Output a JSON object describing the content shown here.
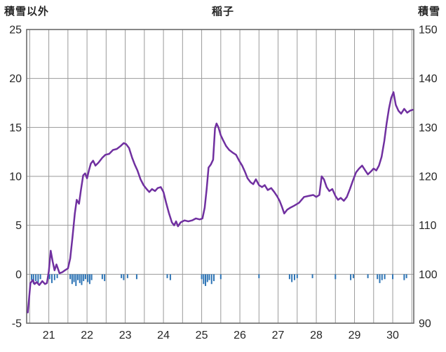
{
  "header": {
    "left_axis_title": "積雪以外",
    "chart_title": "稲子",
    "right_axis_title": "積雪"
  },
  "chart_data": {
    "type": "line",
    "title": "稲子",
    "left_axis": {
      "label": "積雪以外",
      "ylim": [
        -5,
        25
      ],
      "ticks": [
        25,
        20,
        15,
        10,
        5,
        0,
        -5
      ]
    },
    "right_axis": {
      "label": "積雪",
      "ylim": [
        90,
        150
      ],
      "ticks": [
        150,
        140,
        130,
        120,
        110,
        100,
        90
      ]
    },
    "x_axis": {
      "xlim": [
        20.42,
        30.55
      ],
      "ticks": [
        21,
        22,
        23,
        24,
        25,
        26,
        27,
        28,
        29,
        30
      ],
      "grid_start": 20.5,
      "grid_end": 30.5,
      "grid_step": 0.5
    },
    "grid": true,
    "legend": "none",
    "colors": {
      "line": "#7030a0",
      "bars": "#2e75b6",
      "grid": "#9a9a9a",
      "border": "#6b6b6b",
      "text": "#262626",
      "background": "#ffffff"
    },
    "series": [
      {
        "name": "snow-depth-line",
        "type": "line",
        "color": "#7030a0",
        "points": [
          [
            20.45,
            -3.9
          ],
          [
            20.48,
            -2.6
          ],
          [
            20.52,
            -0.9
          ],
          [
            20.58,
            -0.6
          ],
          [
            20.63,
            -1.0
          ],
          [
            20.68,
            -0.8
          ],
          [
            20.75,
            -1.1
          ],
          [
            20.83,
            -0.7
          ],
          [
            20.9,
            -1.0
          ],
          [
            20.95,
            -0.9
          ],
          [
            21.0,
            0.3
          ],
          [
            21.05,
            2.4
          ],
          [
            21.1,
            1.3
          ],
          [
            21.15,
            0.4
          ],
          [
            21.2,
            1.0
          ],
          [
            21.28,
            0.1
          ],
          [
            21.35,
            0.2
          ],
          [
            21.42,
            0.4
          ],
          [
            21.5,
            0.6
          ],
          [
            21.56,
            1.6
          ],
          [
            21.62,
            3.8
          ],
          [
            21.68,
            6.2
          ],
          [
            21.73,
            7.6
          ],
          [
            21.79,
            7.2
          ],
          [
            21.84,
            8.6
          ],
          [
            21.9,
            10.1
          ],
          [
            21.95,
            10.3
          ],
          [
            22.0,
            9.8
          ],
          [
            22.05,
            10.6
          ],
          [
            22.1,
            11.3
          ],
          [
            22.16,
            11.6
          ],
          [
            22.22,
            11.1
          ],
          [
            22.3,
            11.4
          ],
          [
            22.4,
            11.9
          ],
          [
            22.48,
            12.2
          ],
          [
            22.58,
            12.3
          ],
          [
            22.68,
            12.7
          ],
          [
            22.78,
            12.8
          ],
          [
            22.88,
            13.1
          ],
          [
            22.96,
            13.4
          ],
          [
            23.02,
            13.3
          ],
          [
            23.1,
            12.9
          ],
          [
            23.18,
            11.9
          ],
          [
            23.25,
            11.2
          ],
          [
            23.32,
            10.6
          ],
          [
            23.4,
            9.7
          ],
          [
            23.48,
            9.1
          ],
          [
            23.56,
            8.7
          ],
          [
            23.63,
            8.4
          ],
          [
            23.7,
            8.7
          ],
          [
            23.78,
            8.5
          ],
          [
            23.85,
            8.8
          ],
          [
            23.93,
            8.9
          ],
          [
            24.0,
            8.4
          ],
          [
            24.07,
            7.3
          ],
          [
            24.14,
            6.3
          ],
          [
            24.22,
            5.3
          ],
          [
            24.28,
            5.0
          ],
          [
            24.33,
            5.4
          ],
          [
            24.38,
            4.9
          ],
          [
            24.45,
            5.3
          ],
          [
            24.55,
            5.5
          ],
          [
            24.65,
            5.4
          ],
          [
            24.75,
            5.5
          ],
          [
            24.85,
            5.7
          ],
          [
            24.95,
            5.6
          ],
          [
            25.02,
            5.7
          ],
          [
            25.08,
            6.8
          ],
          [
            25.13,
            8.7
          ],
          [
            25.18,
            10.9
          ],
          [
            25.24,
            11.2
          ],
          [
            25.3,
            11.7
          ],
          [
            25.35,
            14.9
          ],
          [
            25.39,
            15.4
          ],
          [
            25.44,
            15.0
          ],
          [
            25.5,
            14.2
          ],
          [
            25.56,
            13.7
          ],
          [
            25.64,
            13.1
          ],
          [
            25.72,
            12.7
          ],
          [
            25.82,
            12.4
          ],
          [
            25.9,
            12.2
          ],
          [
            25.98,
            11.6
          ],
          [
            26.06,
            11.1
          ],
          [
            26.14,
            10.4
          ],
          [
            26.2,
            9.8
          ],
          [
            26.28,
            9.4
          ],
          [
            26.35,
            9.2
          ],
          [
            26.42,
            9.7
          ],
          [
            26.5,
            9.1
          ],
          [
            26.58,
            8.9
          ],
          [
            26.65,
            9.1
          ],
          [
            26.73,
            8.6
          ],
          [
            26.82,
            8.8
          ],
          [
            26.9,
            8.4
          ],
          [
            26.97,
            8.0
          ],
          [
            27.04,
            7.5
          ],
          [
            27.1,
            6.9
          ],
          [
            27.16,
            6.2
          ],
          [
            27.24,
            6.6
          ],
          [
            27.32,
            6.8
          ],
          [
            27.42,
            7.0
          ],
          [
            27.55,
            7.3
          ],
          [
            27.68,
            7.9
          ],
          [
            27.8,
            8.0
          ],
          [
            27.92,
            8.1
          ],
          [
            28.0,
            7.9
          ],
          [
            28.08,
            8.1
          ],
          [
            28.14,
            10.0
          ],
          [
            28.2,
            9.7
          ],
          [
            28.27,
            8.9
          ],
          [
            28.34,
            8.5
          ],
          [
            28.42,
            8.7
          ],
          [
            28.5,
            8.0
          ],
          [
            28.57,
            7.6
          ],
          [
            28.64,
            7.8
          ],
          [
            28.72,
            7.5
          ],
          [
            28.8,
            7.9
          ],
          [
            28.88,
            8.7
          ],
          [
            28.96,
            9.6
          ],
          [
            29.04,
            10.4
          ],
          [
            29.12,
            10.8
          ],
          [
            29.2,
            11.1
          ],
          [
            29.28,
            10.6
          ],
          [
            29.35,
            10.2
          ],
          [
            29.43,
            10.5
          ],
          [
            29.5,
            10.8
          ],
          [
            29.57,
            10.6
          ],
          [
            29.64,
            11.1
          ],
          [
            29.71,
            12.0
          ],
          [
            29.78,
            13.6
          ],
          [
            29.84,
            15.4
          ],
          [
            29.9,
            16.9
          ],
          [
            29.96,
            18.0
          ],
          [
            30.02,
            18.6
          ],
          [
            30.08,
            17.3
          ],
          [
            30.15,
            16.7
          ],
          [
            30.22,
            16.4
          ],
          [
            30.3,
            16.9
          ],
          [
            30.38,
            16.5
          ],
          [
            30.45,
            16.7
          ],
          [
            30.52,
            16.8
          ]
        ]
      },
      {
        "name": "below-zero-bars",
        "type": "bar",
        "color": "#2e75b6",
        "points": [
          [
            20.55,
            -0.6
          ],
          [
            20.6,
            -1.0
          ],
          [
            20.66,
            -0.7
          ],
          [
            20.72,
            -0.9
          ],
          [
            20.78,
            -0.5
          ],
          [
            21.02,
            -0.5
          ],
          [
            21.08,
            -0.9
          ],
          [
            21.15,
            -0.6
          ],
          [
            21.22,
            -0.4
          ],
          [
            21.56,
            -0.5
          ],
          [
            21.61,
            -1.0
          ],
          [
            21.66,
            -0.8
          ],
          [
            21.71,
            -1.2
          ],
          [
            21.76,
            -0.6
          ],
          [
            21.81,
            -0.9
          ],
          [
            21.86,
            -1.1
          ],
          [
            21.91,
            -0.7
          ],
          [
            21.96,
            -0.5
          ],
          [
            22.02,
            -0.8
          ],
          [
            22.07,
            -1.0
          ],
          [
            22.12,
            -0.6
          ],
          [
            22.4,
            -0.5
          ],
          [
            22.46,
            -0.7
          ],
          [
            22.9,
            -0.4
          ],
          [
            22.96,
            -0.6
          ],
          [
            23.06,
            -0.4
          ],
          [
            23.3,
            -0.5
          ],
          [
            24.1,
            -0.4
          ],
          [
            24.18,
            -0.6
          ],
          [
            25.0,
            -0.5
          ],
          [
            25.05,
            -1.0
          ],
          [
            25.1,
            -1.2
          ],
          [
            25.15,
            -0.8
          ],
          [
            25.2,
            -0.6
          ],
          [
            25.26,
            -1.0
          ],
          [
            25.32,
            -0.7
          ],
          [
            25.5,
            -0.5
          ],
          [
            26.5,
            -0.4
          ],
          [
            27.3,
            -0.5
          ],
          [
            27.36,
            -0.8
          ],
          [
            27.43,
            -0.6
          ],
          [
            27.5,
            -0.4
          ],
          [
            27.9,
            -0.4
          ],
          [
            28.5,
            -0.5
          ],
          [
            28.9,
            -0.6
          ],
          [
            28.97,
            -0.4
          ],
          [
            29.35,
            -0.4
          ],
          [
            29.6,
            -0.5
          ],
          [
            29.66,
            -0.9
          ],
          [
            29.72,
            -0.6
          ],
          [
            29.79,
            -0.5
          ],
          [
            30.0,
            -0.5
          ],
          [
            30.3,
            -0.6
          ],
          [
            30.36,
            -0.4
          ]
        ]
      }
    ]
  }
}
